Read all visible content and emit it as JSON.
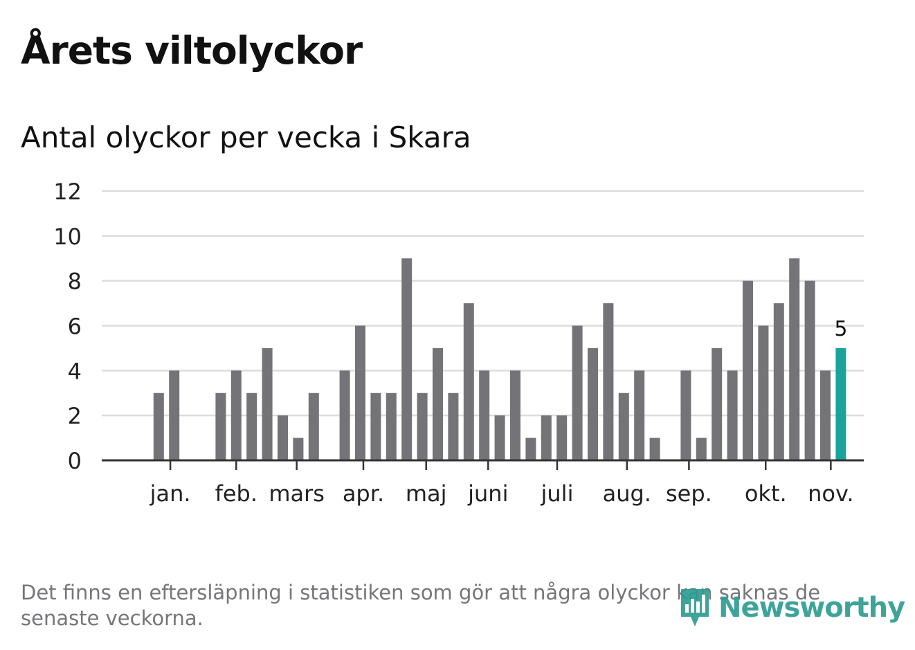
{
  "title": "Årets viltolyckor",
  "subtitle": "Antal olyckor per vecka i Skara",
  "footnote": "Det finns en eftersläpning i statistiken som gör att några olyckor kan saknas de senaste veckorna.",
  "brand": {
    "name": "Newsworthy",
    "icon": "bar-chart-logo-icon",
    "color": "#2e9d92"
  },
  "chart_data": {
    "type": "bar",
    "title": "Antal olyckor per vecka i Skara",
    "xlabel": "",
    "ylabel": "",
    "ylim": [
      0,
      12
    ],
    "yticks": [
      "0",
      "2",
      "4",
      "6",
      "8",
      "10",
      "12"
    ],
    "grid": true,
    "bar_color": "#737378",
    "highlight_color": "#1aa39a",
    "highlight_label": "5",
    "values": [
      0,
      0,
      3,
      4,
      0,
      0,
      3,
      4,
      3,
      5,
      2,
      1,
      3,
      0,
      4,
      6,
      3,
      3,
      9,
      3,
      5,
      3,
      7,
      4,
      2,
      4,
      1,
      2,
      2,
      6,
      5,
      7,
      3,
      4,
      1,
      0,
      4,
      1,
      5,
      4,
      8,
      6,
      7,
      9,
      8,
      4,
      5
    ],
    "month_labels": [
      {
        "label": "jan.",
        "week": 2.75
      },
      {
        "label": "feb.",
        "week": 7.0
      },
      {
        "label": "mars",
        "week": 10.9
      },
      {
        "label": "apr.",
        "week": 15.2
      },
      {
        "label": "maj",
        "week": 19.25
      },
      {
        "label": "juni",
        "week": 23.25
      },
      {
        "label": "juli",
        "week": 27.7
      },
      {
        "label": "aug.",
        "week": 32.2
      },
      {
        "label": "sep.",
        "week": 36.2
      },
      {
        "label": "okt.",
        "week": 41.15
      },
      {
        "label": "nov.",
        "week": 45.35
      }
    ]
  }
}
